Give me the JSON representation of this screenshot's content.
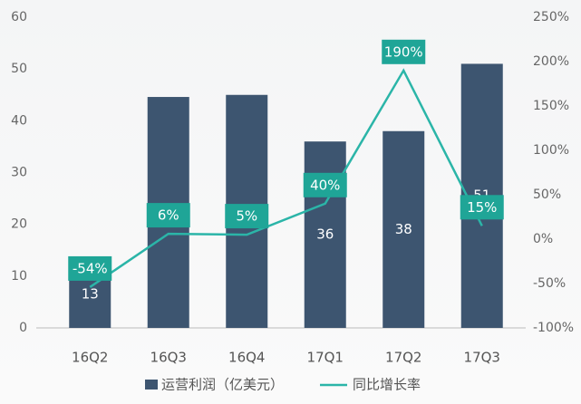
{
  "chart_data": {
    "type": "bar-line",
    "categories": [
      "16Q2",
      "16Q3",
      "16Q4",
      "17Q1",
      "17Q2",
      "17Q3"
    ],
    "series": [
      {
        "name": "运营利润（亿美元）",
        "type": "bar",
        "color": "#3d5570",
        "values": [
          13,
          44.6,
          45,
          36,
          38,
          51
        ]
      },
      {
        "name": "同比增长率",
        "type": "line",
        "axis": "y2",
        "color": "#2bb5a8",
        "values": [
          -54,
          6,
          5,
          40,
          190,
          15
        ],
        "value_labels": [
          "-54%",
          "6%",
          "5%",
          "40%",
          "190%",
          "15%"
        ]
      }
    ],
    "ylim": [
      0,
      60
    ],
    "yticks": [
      0,
      10,
      20,
      30,
      40,
      50,
      60
    ],
    "y2lim": [
      -100,
      250
    ],
    "y2ticks": [
      {
        "value": -100,
        "label": "-100%"
      },
      {
        "value": -50,
        "label": "-50%"
      },
      {
        "value": 0,
        "label": "0%"
      },
      {
        "value": 50,
        "label": "50%"
      },
      {
        "value": 100,
        "label": "100%"
      },
      {
        "value": 150,
        "label": "150%"
      },
      {
        "value": 200,
        "label": "200%"
      },
      {
        "value": 250,
        "label": "250%"
      }
    ],
    "legend": "bottom"
  }
}
